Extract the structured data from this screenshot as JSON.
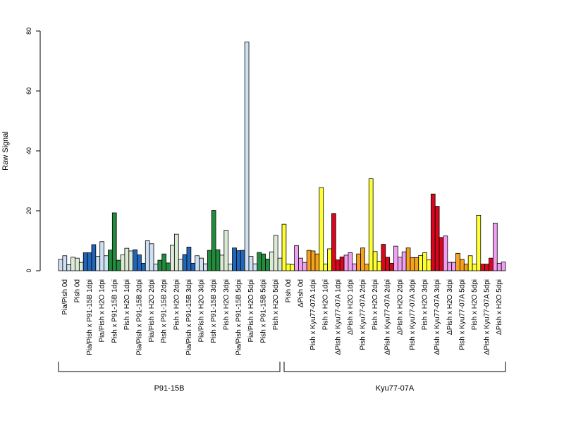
{
  "colors": {
    "light_blue": "#cfe0f2",
    "mid_blue": "#2166b8",
    "light_green": "#dcebd6",
    "dark_green": "#238b3d",
    "yellow": "#ffff33",
    "pink": "#f0a0f0",
    "orange": "#f5a21f",
    "red": "#d7081e",
    "white": "#ffffff"
  },
  "chart_data": {
    "type": "bar",
    "title": "",
    "xlabel": "",
    "ylabel": "Raw Signal",
    "ylim": [
      0,
      80
    ],
    "yticks": [
      0,
      20,
      40,
      60,
      80
    ],
    "grid": false,
    "bar_edge_color": "#000000",
    "categories": [
      {
        "label": "Pia/Pish 0d",
        "color": "light_blue",
        "values": [
          3.8,
          5.0,
          2.0
        ]
      },
      {
        "label": "Pish 0d",
        "color": "light_green",
        "values": [
          4.5,
          4.2,
          2.8
        ]
      },
      {
        "label": "Pia/Pish x P91-15B 1dpi",
        "color": "mid_blue",
        "values": [
          6.0,
          6.0,
          8.7
        ]
      },
      {
        "label": "Pia/Pish x H2O 1dpi",
        "color": "light_blue",
        "values": [
          4.8,
          9.7,
          5.0
        ]
      },
      {
        "label": "Pish x P91-15B 1dpi",
        "color": "dark_green",
        "values": [
          6.9,
          19.3,
          3.5
        ]
      },
      {
        "label": "Pish x H2O 1dpi",
        "color": "light_green",
        "values": [
          5.3,
          7.5,
          6.6
        ]
      },
      {
        "label": "Pia/Pish x P91-15B 2dpi",
        "color": "mid_blue",
        "values": [
          7.0,
          5.3,
          2.5
        ]
      },
      {
        "label": "Pia/Pish x H2O 2dpi",
        "color": "light_blue",
        "values": [
          10.0,
          9.0,
          2.2
        ]
      },
      {
        "label": "Pish x P91-15B 2dpi",
        "color": "dark_green",
        "values": [
          3.5,
          5.6,
          2.6
        ]
      },
      {
        "label": "Pish x H2O 2dpi",
        "color": "light_green",
        "values": [
          8.5,
          12.2,
          3.8
        ]
      },
      {
        "label": "Pia/Pish x P91-15B 3dpi",
        "color": "mid_blue",
        "values": [
          5.4,
          7.9,
          2.5
        ]
      },
      {
        "label": "Pia/Pish x H2O 3dpi",
        "color": "light_blue",
        "values": [
          5.0,
          4.2,
          2.3
        ]
      },
      {
        "label": "Pish x P91-15B 3dpi",
        "color": "dark_green",
        "values": [
          6.8,
          20.1,
          7.0
        ]
      },
      {
        "label": "Pish x H2O 3dpi",
        "color": "light_green",
        "values": [
          5.2,
          13.5,
          2.2
        ]
      },
      {
        "label": "Pia/Pish x P91-15B 5dpi",
        "color": "mid_blue",
        "values": [
          7.6,
          6.7,
          6.8
        ]
      },
      {
        "label": "Pia/Pish x H2O 5dpi",
        "color": "light_blue",
        "values": [
          76.3,
          4.8,
          2.3
        ]
      },
      {
        "label": "Pish x P91-15B 5dpi",
        "color": "dark_green",
        "values": [
          6.1,
          5.6,
          3.9
        ]
      },
      {
        "label": "Pish x H2O 5dpi",
        "color": "light_green",
        "values": [
          6.3,
          11.8,
          4.2
        ]
      },
      {
        "label": "Pish 0d",
        "color": "yellow",
        "values": [
          15.5,
          2.2,
          2.1
        ]
      },
      {
        "label": "ΔPish 0d",
        "color": "pink",
        "values": [
          8.4,
          4.2,
          2.8
        ]
      },
      {
        "label": "Pish x Kyu77-07A 1dpi",
        "color": "orange",
        "values": [
          6.8,
          6.6,
          5.6
        ]
      },
      {
        "label": "Pish x H2O 1dpi",
        "color": "yellow",
        "values": [
          27.8,
          2.2,
          7.3
        ]
      },
      {
        "label": "ΔPish x Kyu77-07A 1dpi",
        "color": "red",
        "values": [
          19.1,
          3.6,
          4.6
        ]
      },
      {
        "label": "ΔPish x H2O 1dpi",
        "color": "pink",
        "values": [
          5.2,
          6.0,
          2.3
        ]
      },
      {
        "label": "Pish x Kyu77-07A 2dpi",
        "color": "orange",
        "values": [
          5.6,
          7.6,
          2.2
        ]
      },
      {
        "label": "Pish x H2O 2dpi",
        "color": "yellow",
        "values": [
          30.7,
          6.4,
          3.2
        ]
      },
      {
        "label": "ΔPish x Kyu77-07A 2dpi",
        "color": "red",
        "values": [
          8.8,
          4.5,
          2.5
        ]
      },
      {
        "label": "ΔPish x H2O 2dpi",
        "color": "pink",
        "values": [
          8.2,
          4.5,
          6.3
        ]
      },
      {
        "label": "Pish x Kyu77-07A 3dpi",
        "color": "orange",
        "values": [
          7.6,
          4.4,
          4.4
        ]
      },
      {
        "label": "Pish x H2O 3dpi",
        "color": "yellow",
        "values": [
          5.1,
          6.0,
          3.6
        ]
      },
      {
        "label": "ΔPish x Kyu77-07A 3dpi",
        "color": "red",
        "values": [
          25.6,
          21.5,
          11.1
        ]
      },
      {
        "label": "ΔPish x H2O 3dpi",
        "color": "pink",
        "values": [
          11.6,
          2.8,
          2.8
        ]
      },
      {
        "label": "Pish x Kyu77-07A 5dpi",
        "color": "orange",
        "values": [
          5.8,
          3.8,
          2.2
        ]
      },
      {
        "label": "Pish x H2O 5dpi",
        "color": "yellow",
        "values": [
          5.0,
          2.2,
          18.5
        ]
      },
      {
        "label": "ΔPish x Kyu77-07A 5dpi",
        "color": "red",
        "values": [
          2.2,
          2.2,
          4.2
        ]
      },
      {
        "label": "ΔPish x H2O 5dpi",
        "color": "pink",
        "values": [
          15.9,
          2.5,
          2.9
        ]
      }
    ],
    "groups": [
      {
        "label": "P91-15B",
        "from": 0,
        "to": 17
      },
      {
        "label": "Kyu77-07A",
        "from": 18,
        "to": 35
      }
    ]
  }
}
